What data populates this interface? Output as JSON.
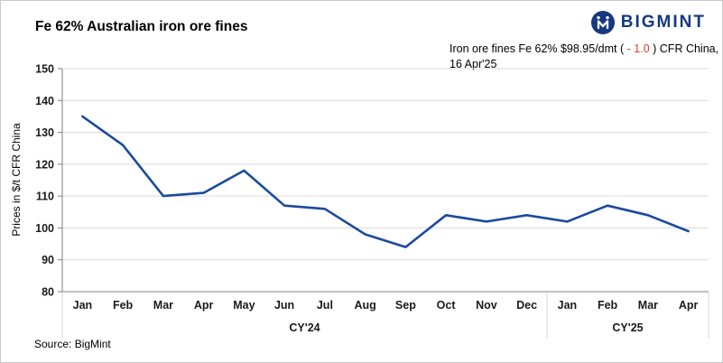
{
  "header": {
    "title": "Fe 62% Australian iron ore fines",
    "logo_text": "BIGMINT",
    "annotation": {
      "line1_prefix": "Iron ore fines Fe 62% $98.95/dmt (",
      "change": " - 1.0 ",
      "line1_suffix": ") CFR China,",
      "line2": "16 Apr'25"
    }
  },
  "footer": {
    "source": "Source: BigMint"
  },
  "colors": {
    "line": "#1b4a9e",
    "brand": "#16397f",
    "negative": "#e8392b",
    "grid": "#d9d9d9",
    "axis": "#7f7f7f",
    "text": "#1a1a1a"
  },
  "chart_data": {
    "type": "line",
    "title": "Fe 62% Australian iron ore fines",
    "xlabel": "",
    "ylabel": "Prices in $/t CFR China",
    "ylim": [
      80,
      150
    ],
    "ytick_step": 10,
    "grid": "horizontal",
    "legend": "none",
    "categories": [
      "Jan",
      "Feb",
      "Mar",
      "Apr",
      "May",
      "Jun",
      "Jul",
      "Aug",
      "Sep",
      "Oct",
      "Nov",
      "Dec",
      "Jan",
      "Feb",
      "Mar",
      "Apr"
    ],
    "groups": [
      {
        "label": "CY'24",
        "span": 12
      },
      {
        "label": "CY'25",
        "span": 4
      }
    ],
    "series": [
      {
        "name": "Fe 62% Australian iron ore fines",
        "values": [
          135,
          126,
          110,
          111,
          118,
          107,
          106,
          98,
          94,
          104,
          102,
          104,
          102,
          107,
          104,
          99
        ]
      }
    ]
  }
}
